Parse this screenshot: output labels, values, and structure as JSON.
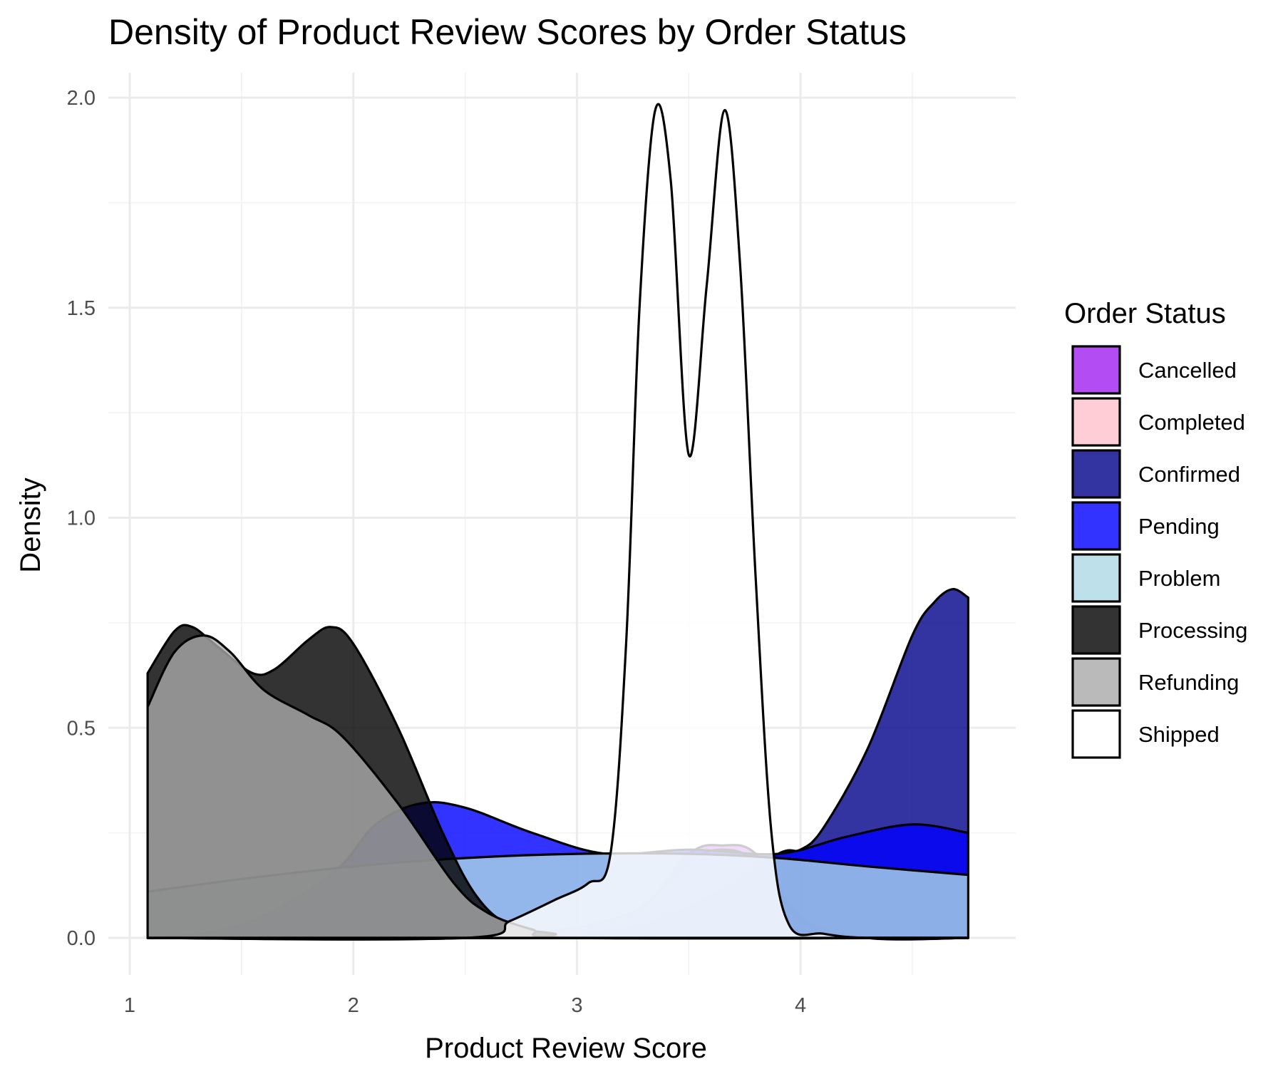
{
  "chart_data": {
    "type": "area",
    "title": "Density of Product Review Scores by Order Status",
    "xlabel": "Product Review Score",
    "ylabel": "Density",
    "xlim": [
      1.0,
      4.75
    ],
    "ylim": [
      0.0,
      2.0
    ],
    "x_ticks": [
      "1",
      "2",
      "3",
      "4"
    ],
    "y_ticks": [
      "0.0",
      "0.5",
      "1.0",
      "1.5",
      "2.0"
    ],
    "grid": true,
    "legend": {
      "title": "Order Status",
      "position": "right"
    },
    "series": [
      {
        "name": "Cancelled",
        "color": "#A020F0",
        "alpha": 0.8,
        "points": [
          [
            1.08,
            0.0
          ],
          [
            2.4,
            0.0
          ],
          [
            3.2,
            0.05
          ],
          [
            3.5,
            0.2
          ],
          [
            3.65,
            0.22
          ],
          [
            3.8,
            0.2
          ],
          [
            4.0,
            0.05
          ],
          [
            4.3,
            0.0
          ],
          [
            4.75,
            0.0
          ]
        ]
      },
      {
        "name": "Completed",
        "color": "#FFC0CB",
        "alpha": 0.8,
        "points": [
          [
            1.08,
            0.0
          ],
          [
            2.5,
            0.0
          ],
          [
            3.2,
            0.05
          ],
          [
            3.5,
            0.18
          ],
          [
            3.65,
            0.21
          ],
          [
            3.8,
            0.18
          ],
          [
            4.0,
            0.04
          ],
          [
            4.3,
            0.0
          ],
          [
            4.75,
            0.0
          ]
        ]
      },
      {
        "name": "Confirmed",
        "color": "#00008B",
        "alpha": 0.8,
        "points": [
          [
            1.08,
            0.0
          ],
          [
            2.6,
            0.0
          ],
          [
            3.2,
            0.02
          ],
          [
            3.6,
            0.1
          ],
          [
            3.9,
            0.2
          ],
          [
            4.0,
            0.21
          ],
          [
            4.1,
            0.26
          ],
          [
            4.3,
            0.45
          ],
          [
            4.5,
            0.72
          ],
          [
            4.6,
            0.8
          ],
          [
            4.68,
            0.83
          ],
          [
            4.75,
            0.81
          ]
        ]
      },
      {
        "name": "Pending",
        "color": "#0000FF",
        "alpha": 0.8,
        "points": [
          [
            1.08,
            0.0
          ],
          [
            1.5,
            0.03
          ],
          [
            1.9,
            0.15
          ],
          [
            2.1,
            0.27
          ],
          [
            2.3,
            0.32
          ],
          [
            2.5,
            0.31
          ],
          [
            2.8,
            0.25
          ],
          [
            3.13,
            0.2
          ],
          [
            3.5,
            0.21
          ],
          [
            3.9,
            0.2
          ],
          [
            4.2,
            0.24
          ],
          [
            4.5,
            0.27
          ],
          [
            4.75,
            0.25
          ]
        ]
      },
      {
        "name": "Problem",
        "color": "#ADD8E6",
        "alpha": 0.8,
        "points": [
          [
            1.08,
            0.11
          ],
          [
            1.5,
            0.14
          ],
          [
            2.0,
            0.17
          ],
          [
            2.5,
            0.19
          ],
          [
            3.0,
            0.2
          ],
          [
            3.5,
            0.2
          ],
          [
            3.9,
            0.19
          ],
          [
            4.3,
            0.17
          ],
          [
            4.75,
            0.15
          ]
        ]
      },
      {
        "name": "Processing",
        "color": "#000000",
        "alpha": 0.8,
        "points": [
          [
            1.08,
            0.63
          ],
          [
            1.2,
            0.73
          ],
          [
            1.28,
            0.74
          ],
          [
            1.4,
            0.69
          ],
          [
            1.55,
            0.63
          ],
          [
            1.65,
            0.64
          ],
          [
            1.8,
            0.71
          ],
          [
            1.9,
            0.74
          ],
          [
            2.0,
            0.7
          ],
          [
            2.2,
            0.5
          ],
          [
            2.4,
            0.25
          ],
          [
            2.55,
            0.1
          ],
          [
            2.7,
            0.03
          ],
          [
            2.9,
            0.01
          ],
          [
            3.0,
            0.0
          ],
          [
            4.75,
            0.0
          ]
        ]
      },
      {
        "name": "Refunding",
        "color": "#A9A9A9",
        "alpha": 0.8,
        "points": [
          [
            1.08,
            0.55
          ],
          [
            1.2,
            0.68
          ],
          [
            1.33,
            0.72
          ],
          [
            1.45,
            0.68
          ],
          [
            1.6,
            0.59
          ],
          [
            1.8,
            0.53
          ],
          [
            1.95,
            0.48
          ],
          [
            2.2,
            0.32
          ],
          [
            2.45,
            0.13
          ],
          [
            2.6,
            0.06
          ],
          [
            2.8,
            0.02
          ],
          [
            3.0,
            0.0
          ],
          [
            4.75,
            0.0
          ]
        ]
      },
      {
        "name": "Shipped",
        "color": "#FFFFFF",
        "alpha": 0.8,
        "points": [
          [
            1.08,
            0.0
          ],
          [
            2.5,
            0.0
          ],
          [
            2.7,
            0.04
          ],
          [
            2.9,
            0.09
          ],
          [
            3.05,
            0.13
          ],
          [
            3.15,
            0.2
          ],
          [
            3.22,
            0.7
          ],
          [
            3.28,
            1.5
          ],
          [
            3.35,
            1.97
          ],
          [
            3.42,
            1.8
          ],
          [
            3.5,
            1.15
          ],
          [
            3.58,
            1.55
          ],
          [
            3.66,
            1.97
          ],
          [
            3.73,
            1.6
          ],
          [
            3.8,
            0.85
          ],
          [
            3.87,
            0.25
          ],
          [
            3.95,
            0.03
          ],
          [
            4.1,
            0.01
          ],
          [
            4.3,
            0.0
          ],
          [
            4.75,
            0.0
          ]
        ]
      }
    ]
  }
}
